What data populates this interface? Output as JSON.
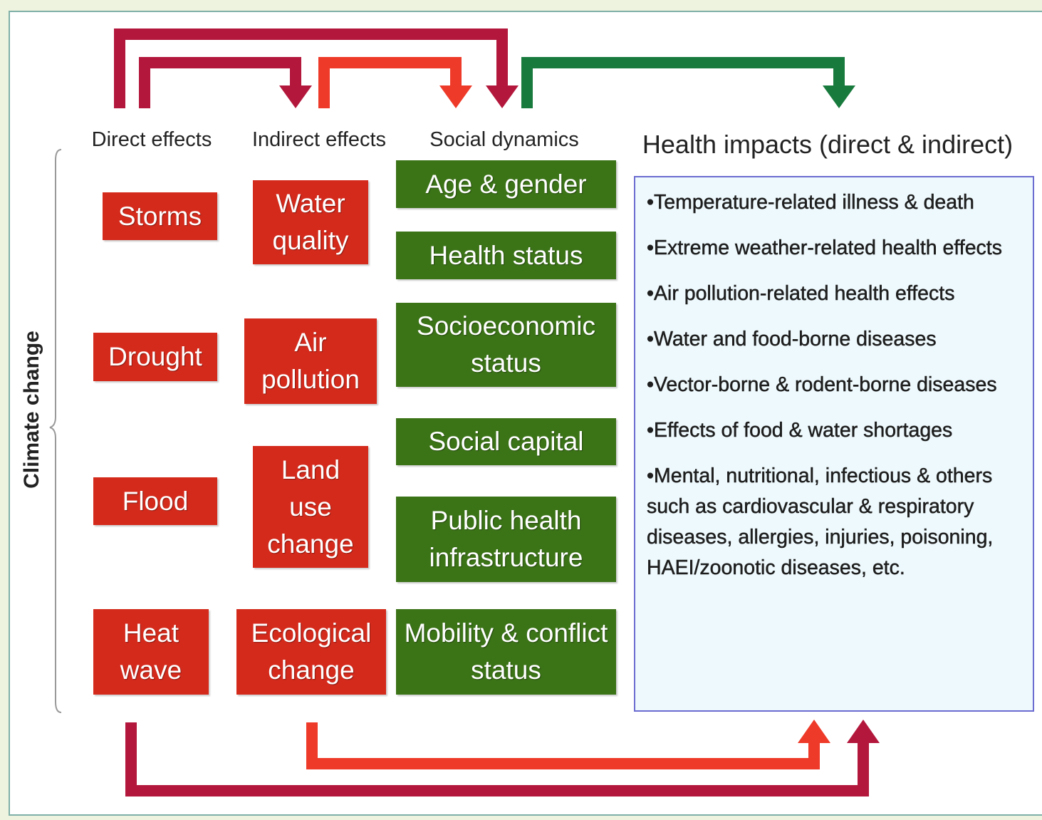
{
  "headers": {
    "direct": "Direct effects",
    "indirect": "Indirect effects",
    "social": "Social dynamics",
    "health": "Health impacts (direct & indirect)"
  },
  "side_label": "Climate change",
  "direct_effects": [
    "Storms",
    "Drought",
    "Flood",
    "Heat wave"
  ],
  "indirect_effects": [
    "Water quality",
    "Air pollution",
    "Land use change",
    "Ecological change"
  ],
  "social_dynamics": [
    "Age & gender",
    "Health status",
    "Socioeconomic status",
    "Social capital",
    "Public health infrastructure",
    "Mobility & conflict status"
  ],
  "health_impacts": [
    "•Temperature-related illness & death",
    "•Extreme weather-related health effects",
    "•Air pollution-related health effects",
    "•Water and food-borne diseases",
    "•Vector-borne & rodent-borne diseases",
    "•Effects of food & water shortages",
    "•Mental, nutritional, infectious & others such as cardiovascular & respiratory diseases, allergies, injuries, poisoning, HAEI/zoonotic diseases, etc."
  ]
}
